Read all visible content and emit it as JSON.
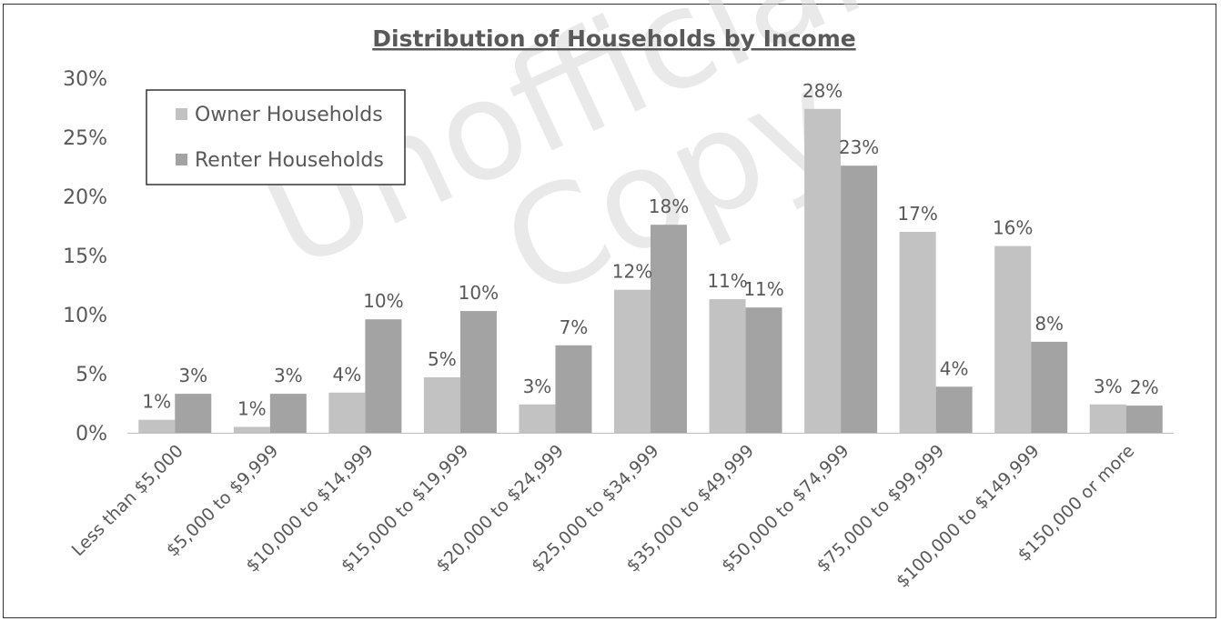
{
  "chart_data": {
    "type": "bar",
    "title": "Distribution of Households by Income",
    "xlabel": "",
    "ylabel": "",
    "ylim": [
      0,
      0.3
    ],
    "yticks": [
      "0%",
      "5%",
      "10%",
      "15%",
      "20%",
      "25%",
      "30%"
    ],
    "categories": [
      "Less than $5,000",
      "$5,000 to $9,999",
      "$10,000 to $14,999",
      "$15,000 to $19,999",
      "$20,000 to $24,999",
      "$25,000 to $34,999",
      "$35,000 to $49,999",
      "$50,000 to $74,999",
      "$75,000 to $99,999",
      "$100,000 to $149,999",
      "$150,000 or more"
    ],
    "series": [
      {
        "name": "Owner Households",
        "color": "#c2c2c2",
        "values": [
          0.011,
          0.005,
          0.034,
          0.047,
          0.024,
          0.121,
          0.113,
          0.274,
          0.17,
          0.158,
          0.024
        ],
        "labels": [
          "1%",
          "1%",
          "4%",
          "5%",
          "3%",
          "12%",
          "11%",
          "28%",
          "17%",
          "16%",
          "3%"
        ]
      },
      {
        "name": "Renter Households",
        "color": "#a3a3a3",
        "values": [
          0.033,
          0.033,
          0.096,
          0.103,
          0.074,
          0.176,
          0.106,
          0.226,
          0.039,
          0.077,
          0.023
        ],
        "labels": [
          "3%",
          "3%",
          "10%",
          "10%",
          "7%",
          "18%",
          "11%",
          "23%",
          "4%",
          "8%",
          "2%"
        ]
      }
    ],
    "legend": "top-left",
    "grid": false
  },
  "watermark": [
    "Unofficial",
    "Copy"
  ]
}
